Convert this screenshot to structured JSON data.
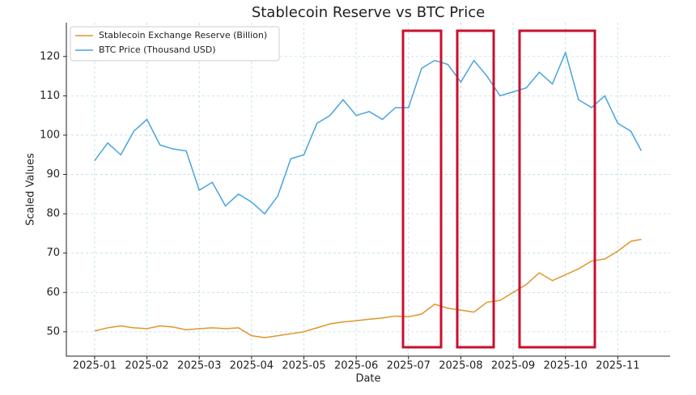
{
  "chart_data": {
    "type": "line",
    "title": "Stablecoin Reserve vs BTC Price",
    "x_label": "Date",
    "y_label": "Scaled Values",
    "x": [
      1.0,
      1.25,
      1.5,
      1.75,
      2.0,
      2.25,
      2.5,
      2.75,
      3.0,
      3.25,
      3.5,
      3.75,
      4.0,
      4.25,
      4.5,
      4.75,
      5.0,
      5.25,
      5.5,
      5.75,
      6.0,
      6.25,
      6.5,
      6.75,
      7.0,
      7.25,
      7.5,
      7.75,
      8.0,
      8.25,
      8.5,
      8.75,
      9.0,
      9.25,
      9.5,
      9.75,
      10.0,
      10.25,
      10.5,
      10.75,
      11.0,
      11.25,
      11.45
    ],
    "series": [
      {
        "name": "Stablecoin Exchange Reserve (Billion)",
        "color": "#e0952a",
        "values": [
          50.2,
          51,
          51.5,
          51,
          50.8,
          51.5,
          51.2,
          50.5,
          50.8,
          51,
          50.8,
          51,
          49,
          48.5,
          49,
          49.5,
          50,
          51,
          52,
          52.5,
          52.8,
          53.2,
          53.5,
          54,
          53.8,
          54.5,
          57,
          56,
          55.5,
          55,
          57.5,
          58,
          60,
          62,
          65,
          63,
          64.5,
          66,
          68,
          68.5,
          70.5,
          73,
          73.5
        ]
      },
      {
        "name": "BTC Price (Thousand USD)",
        "color": "#4aa3df",
        "values": [
          93.5,
          98,
          95,
          101,
          104,
          97.5,
          96.5,
          96,
          86,
          88,
          82,
          85,
          83,
          80,
          84.5,
          94,
          95,
          103,
          105,
          109,
          105,
          106,
          104,
          107,
          107,
          117,
          119,
          118,
          113.5,
          119,
          115,
          110,
          111,
          112,
          116,
          113,
          121,
          109,
          107,
          110,
          103,
          101,
          96
        ]
      }
    ],
    "xlim": [
      0.46,
      12.0
    ],
    "xticks": [
      {
        "value": 1,
        "label": "2025-01"
      },
      {
        "value": 2,
        "label": "2025-02"
      },
      {
        "value": 3,
        "label": "2025-03"
      },
      {
        "value": 4,
        "label": "2025-04"
      },
      {
        "value": 5,
        "label": "2025-05"
      },
      {
        "value": 6,
        "label": "2025-06"
      },
      {
        "value": 7,
        "label": "2025-07"
      },
      {
        "value": 8,
        "label": "2025-08"
      },
      {
        "value": 9,
        "label": "2025-09"
      },
      {
        "value": 10,
        "label": "2025-10"
      },
      {
        "value": 11,
        "label": "2025-11"
      }
    ],
    "ylim": [
      43.8,
      128.6
    ],
    "yticks": [
      50,
      60,
      70,
      80,
      90,
      100,
      110,
      120
    ],
    "grid": true,
    "legend": "upper-left"
  }
}
